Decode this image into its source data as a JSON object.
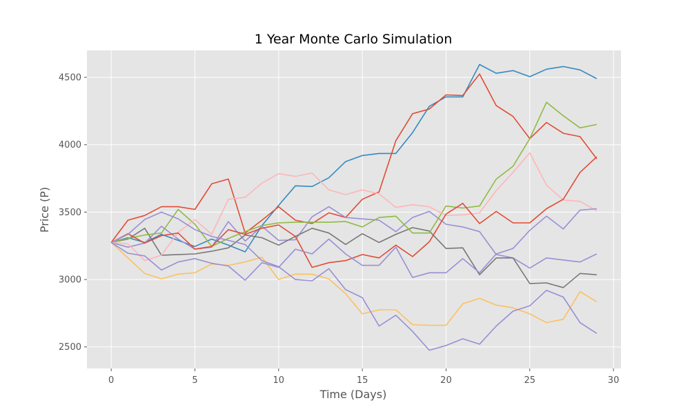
{
  "chart_data": {
    "type": "line",
    "title": "1 Year Monte Carlo Simulation",
    "xlabel": "Time (Days)",
    "ylabel": "Price (P)",
    "xlim": [
      -1.45,
      30.45
    ],
    "ylim": [
      2340,
      4700
    ],
    "xticks": [
      0,
      5,
      10,
      15,
      20,
      25,
      30
    ],
    "yticks": [
      2500,
      3000,
      3500,
      4000,
      4500
    ],
    "grid": true,
    "style": "ggplot",
    "colors": {
      "axes_background": "#E5E5E5",
      "grid": "#FFFFFF"
    },
    "x": [
      0,
      1,
      2,
      3,
      4,
      5,
      6,
      7,
      8,
      9,
      10,
      11,
      12,
      13,
      14,
      15,
      16,
      17,
      18,
      19,
      20,
      21,
      22,
      23,
      24,
      25,
      26,
      27,
      28,
      29
    ],
    "series": [
      {
        "color": "#348ABD",
        "values": [
          3275,
          3310,
          3275,
          3335,
          3290,
          3245,
          3300,
          3255,
          3205,
          3400,
          3550,
          3695,
          3690,
          3755,
          3875,
          3920,
          3935,
          3935,
          4090,
          4285,
          4355,
          4355,
          4595,
          4530,
          4550,
          4505,
          4560,
          4580,
          4555,
          4490
        ]
      },
      {
        "color": "#E24A33",
        "values": [
          3275,
          3440,
          3475,
          3540,
          3540,
          3520,
          3710,
          3745,
          3345,
          3440,
          3540,
          3440,
          3415,
          3495,
          3460,
          3595,
          3650,
          4030,
          4230,
          4265,
          4370,
          4365,
          4525,
          4290,
          4210,
          4045,
          4165,
          4085,
          4060,
          3895
        ]
      },
      {
        "color": "#988ED5",
        "values": [
          3275,
          3240,
          3270,
          3395,
          3300,
          3225,
          3240,
          3430,
          3285,
          3395,
          3290,
          3295,
          3465,
          3540,
          3460,
          3450,
          3440,
          3355,
          3460,
          3505,
          3410,
          3390,
          3355,
          3185,
          3160,
          3085,
          3160,
          3145,
          3130,
          3190
        ]
      },
      {
        "color": "#777777",
        "values": [
          3275,
          3300,
          3380,
          3180,
          3185,
          3190,
          3210,
          3235,
          3330,
          3310,
          3255,
          3320,
          3380,
          3345,
          3260,
          3340,
          3275,
          3335,
          3385,
          3360,
          3230,
          3235,
          3035,
          3160,
          3160,
          2970,
          2975,
          2940,
          3045,
          3035
        ]
      },
      {
        "color": "#FBC15E",
        "values": [
          3275,
          3160,
          3045,
          3005,
          3040,
          3050,
          3115,
          3105,
          3130,
          3165,
          3000,
          3040,
          3040,
          3005,
          2895,
          2745,
          2775,
          2775,
          2665,
          2660,
          2660,
          2820,
          2860,
          2810,
          2790,
          2745,
          2680,
          2705,
          2910,
          2835
        ]
      },
      {
        "color": "#8EBA42",
        "values": [
          3275,
          3305,
          3330,
          3345,
          3520,
          3410,
          3245,
          3305,
          3355,
          3400,
          3420,
          3425,
          3425,
          3425,
          3430,
          3390,
          3460,
          3470,
          3345,
          3345,
          3545,
          3530,
          3545,
          3745,
          3840,
          4045,
          4315,
          4215,
          4125,
          4150
        ]
      },
      {
        "color": "#FFB5B8",
        "values": [
          3275,
          3265,
          3140,
          3180,
          3350,
          3445,
          3335,
          3595,
          3610,
          3715,
          3785,
          3765,
          3790,
          3665,
          3630,
          3665,
          3635,
          3535,
          3555,
          3540,
          3475,
          3480,
          3495,
          3660,
          3795,
          3940,
          3700,
          3590,
          3580,
          3510
        ]
      },
      {
        "color": "#E24A33",
        "values": [
          3275,
          3340,
          3270,
          3325,
          3345,
          3225,
          3245,
          3370,
          3335,
          3380,
          3405,
          3320,
          3090,
          3125,
          3140,
          3185,
          3160,
          3255,
          3170,
          3280,
          3485,
          3565,
          3415,
          3505,
          3420,
          3420,
          3525,
          3595,
          3795,
          3910
        ]
      },
      {
        "color": "#988ED5",
        "values": [
          3275,
          3195,
          3175,
          3070,
          3130,
          3155,
          3120,
          3100,
          2995,
          3125,
          3090,
          3225,
          3190,
          3300,
          3190,
          3105,
          3105,
          3240,
          3015,
          3050,
          3050,
          3155,
          3050,
          3190,
          3230,
          3365,
          3470,
          3375,
          3515,
          3525
        ]
      },
      {
        "color": "#988ED5",
        "values": [
          3275,
          3335,
          3445,
          3500,
          3450,
          3370,
          3320,
          3290,
          3260,
          3140,
          3095,
          3000,
          2990,
          3080,
          2925,
          2865,
          2655,
          2735,
          2615,
          2475,
          2510,
          2560,
          2520,
          2655,
          2765,
          2805,
          2920,
          2870,
          2680,
          2600
        ]
      }
    ]
  }
}
